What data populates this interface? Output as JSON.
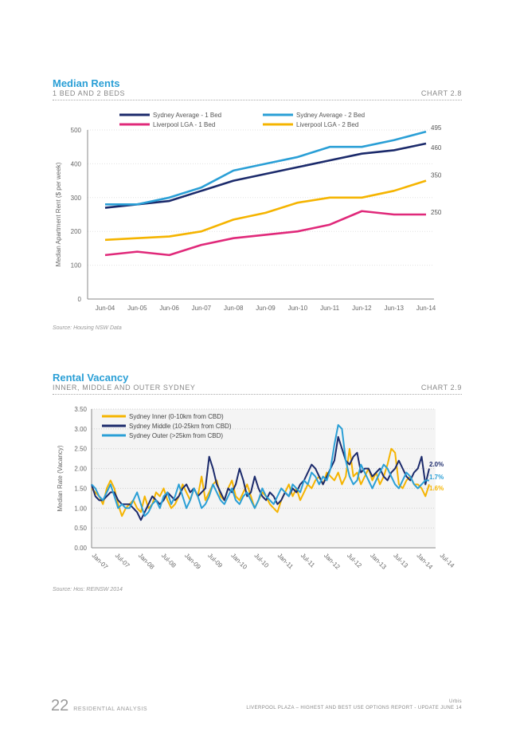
{
  "chart_a": {
    "title": "Median Rents",
    "subtitle": "1 BED AND 2 BEDS",
    "chart_no": "CHART 2.8",
    "source": "Source: Housing NSW Data"
  },
  "chart_b": {
    "title": "Rental Vacancy",
    "subtitle": "INNER, MIDDLE AND OUTER SYDNEY",
    "chart_no": "CHART 2.9",
    "source": "Source: Hos: REINSW 2014"
  },
  "footer": {
    "page": "22",
    "section": "RESIDENTIAL ANALYSIS",
    "line1": "Urbis",
    "line2": "LIVERPOOL PLAZA – HIGHEST AND BEST USE OPTIONS REPORT - UPDATE JUNE 14"
  },
  "chart_data": [
    {
      "type": "line",
      "ylabel": "Median Apartment Rent ($ per week)",
      "xlabel": "",
      "ylim": [
        0,
        500
      ],
      "yticks": [
        0,
        100,
        200,
        300,
        400,
        500
      ],
      "ytick_labels": [
        "0",
        "100",
        "200",
        "300",
        "400",
        "500"
      ],
      "grid": true,
      "legend_position": "top",
      "categories": [
        "Jun-04",
        "Jun-05",
        "Jun-06",
        "Jun-07",
        "Jun-08",
        "Jun-09",
        "Jun-10",
        "Jun-11",
        "Jun-12",
        "Jun-13",
        "Jun-14"
      ],
      "series": [
        {
          "name": "Sydney Average - 1 Bed",
          "color": "#1b2a6b",
          "values": [
            270,
            280,
            290,
            320,
            350,
            370,
            390,
            410,
            430,
            440,
            460
          ],
          "end_label": "460"
        },
        {
          "name": "Sydney Average - 2 Bed",
          "color": "#2a9fd6",
          "values": [
            280,
            280,
            300,
            330,
            380,
            400,
            420,
            450,
            450,
            470,
            495
          ],
          "end_label": "495"
        },
        {
          "name": "Liverpool LGA - 1 Bed",
          "color": "#e0297a",
          "values": [
            130,
            140,
            130,
            160,
            180,
            190,
            200,
            220,
            260,
            250,
            250
          ],
          "end_label": "250"
        },
        {
          "name": "Liverpool LGA - 2 Bed",
          "color": "#f5b400",
          "values": [
            175,
            180,
            185,
            200,
            235,
            255,
            285,
            300,
            300,
            320,
            350
          ],
          "end_label": "350"
        }
      ]
    },
    {
      "type": "line",
      "ylabel": "Median Rate (Vacancy)",
      "xlabel": "",
      "ylim": [
        0,
        3.5
      ],
      "yticks": [
        0,
        0.5,
        1.0,
        1.5,
        2.0,
        2.5,
        3.0,
        3.5
      ],
      "ytick_labels": [
        "0.00",
        "0.50",
        "1.00",
        "1.50",
        "2.00",
        "2.50",
        "3.00",
        "3.50"
      ],
      "grid": true,
      "legend_position": "top-left",
      "x_tick_labels": [
        "Jan-07",
        "Jul-07",
        "Jan-08",
        "Jul-08",
        "Jan-09",
        "Jul-09",
        "Jan-10",
        "Jul-10",
        "Jan-11",
        "Jul-11",
        "Jan-12",
        "Jul-12",
        "Jan-13",
        "Jul-13",
        "Jan-14",
        "Jul-14"
      ],
      "n_points": 90,
      "series": [
        {
          "name": "Sydney Inner (0-10km from CBD)",
          "color": "#f5b400",
          "end_label": "1.6%",
          "values": [
            1.5,
            1.4,
            1.3,
            1.1,
            1.5,
            1.7,
            1.5,
            1.1,
            0.8,
            1.0,
            1.1,
            1.2,
            1.0,
            0.9,
            1.3,
            1.0,
            1.1,
            1.4,
            1.3,
            1.5,
            1.2,
            1.0,
            1.1,
            1.3,
            1.6,
            1.4,
            1.2,
            1.5,
            1.3,
            1.8,
            1.2,
            1.4,
            1.6,
            1.7,
            1.3,
            1.2,
            1.5,
            1.7,
            1.3,
            1.2,
            1.4,
            1.6,
            1.3,
            1.0,
            1.2,
            1.4,
            1.3,
            1.1,
            1.0,
            0.9,
            1.2,
            1.4,
            1.6,
            1.3,
            1.5,
            1.2,
            1.4,
            1.6,
            1.5,
            1.7,
            1.8,
            1.6,
            1.9,
            1.8,
            1.7,
            1.9,
            1.6,
            1.8,
            2.5,
            1.8,
            1.9,
            1.6,
            1.8,
            2.0,
            1.7,
            1.9,
            1.6,
            1.8,
            2.1,
            2.5,
            2.4,
            1.6,
            1.5,
            1.7,
            1.8,
            1.6,
            1.6,
            1.5,
            1.3,
            1.6
          ]
        },
        {
          "name": "Sydney Middle (10-25km from CBD)",
          "color": "#1b2a6b",
          "end_label": "2.0%",
          "values": [
            1.6,
            1.3,
            1.2,
            1.2,
            1.3,
            1.4,
            1.4,
            1.2,
            1.1,
            1.1,
            1.1,
            1.0,
            0.9,
            0.7,
            0.9,
            1.1,
            1.3,
            1.2,
            1.1,
            1.2,
            1.4,
            1.3,
            1.2,
            1.3,
            1.5,
            1.6,
            1.4,
            1.5,
            1.3,
            1.4,
            1.5,
            2.3,
            2.0,
            1.6,
            1.4,
            1.2,
            1.5,
            1.4,
            1.6,
            2.0,
            1.7,
            1.3,
            1.4,
            1.8,
            1.5,
            1.3,
            1.2,
            1.4,
            1.3,
            1.1,
            1.2,
            1.4,
            1.3,
            1.5,
            1.4,
            1.6,
            1.7,
            1.9,
            2.1,
            2.0,
            1.8,
            1.6,
            1.8,
            2.0,
            2.2,
            2.8,
            2.5,
            2.2,
            2.1,
            2.3,
            2.4,
            1.9,
            2.0,
            2.0,
            1.8,
            1.9,
            2.0,
            1.8,
            1.7,
            1.9,
            2.0,
            2.2,
            2.0,
            1.8,
            1.7,
            1.9,
            2.0,
            2.3,
            1.6,
            2.0
          ]
        },
        {
          "name": "Sydney Outer (>25km from CBD)",
          "color": "#2a9fd6",
          "end_label": "1.7%",
          "values": [
            1.6,
            1.5,
            1.3,
            1.2,
            1.4,
            1.6,
            1.3,
            1.0,
            1.1,
            1.0,
            1.0,
            1.2,
            1.4,
            1.1,
            0.8,
            0.9,
            1.1,
            1.2,
            1.0,
            1.3,
            1.4,
            1.1,
            1.3,
            1.6,
            1.3,
            1.0,
            1.2,
            1.5,
            1.3,
            1.0,
            1.1,
            1.3,
            1.6,
            1.4,
            1.2,
            1.1,
            1.3,
            1.5,
            1.2,
            1.1,
            1.3,
            1.4,
            1.2,
            1.0,
            1.2,
            1.5,
            1.3,
            1.2,
            1.1,
            1.3,
            1.5,
            1.4,
            1.3,
            1.6,
            1.5,
            1.4,
            1.7,
            1.6,
            1.9,
            1.8,
            1.6,
            1.8,
            1.7,
            2.0,
            2.6,
            3.1,
            3.0,
            2.2,
            1.8,
            1.6,
            1.7,
            2.1,
            1.9,
            1.7,
            1.5,
            1.7,
            1.9,
            2.1,
            2.0,
            1.8,
            1.6,
            1.5,
            1.7,
            1.9,
            1.8,
            1.6,
            1.5,
            1.6,
            1.7,
            1.7
          ]
        }
      ]
    }
  ]
}
